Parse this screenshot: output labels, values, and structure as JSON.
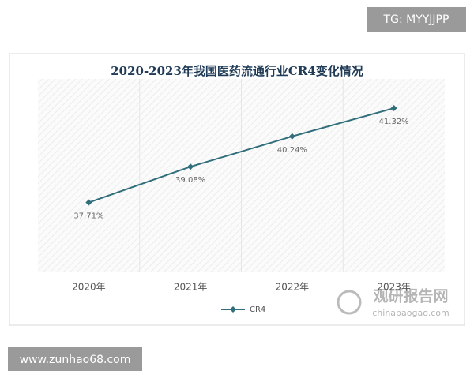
{
  "chart_data": {
    "type": "line",
    "title": "2020-2023年我国医药流通行业CR4变化情况",
    "categories": [
      "2020年",
      "2021年",
      "2022年",
      "2023年"
    ],
    "series": [
      {
        "name": "CR4",
        "color": "#2f6e7a",
        "values": [
          37.71,
          39.08,
          40.24,
          41.32
        ],
        "value_labels": [
          "37.71%",
          "39.08%",
          "40.24%",
          "41.32%"
        ]
      }
    ]
  },
  "watermarks": {
    "top_right": "TG: MYYJJPP",
    "bottom_left": "www.zunhao68.com",
    "logo_name": "观研报告网",
    "logo_url": "chinabaogao.com"
  }
}
